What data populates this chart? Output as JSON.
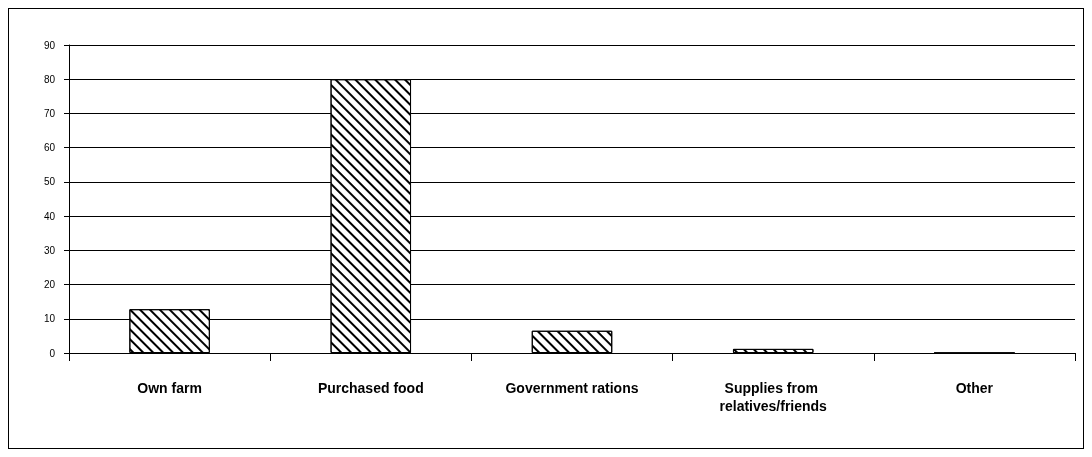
{
  "chart_data": {
    "type": "bar",
    "categories": [
      "Own farm",
      "Purchased food",
      "Government rations",
      "Supplies from relatives/friends",
      "Other"
    ],
    "values": [
      12.8,
      80,
      6.5,
      1.2,
      0
    ],
    "color": "#000000",
    "ylim": [
      0,
      90
    ],
    "yticks": [
      0,
      10,
      20,
      30,
      40,
      50,
      60,
      70,
      80,
      90
    ],
    "grid": "y"
  }
}
